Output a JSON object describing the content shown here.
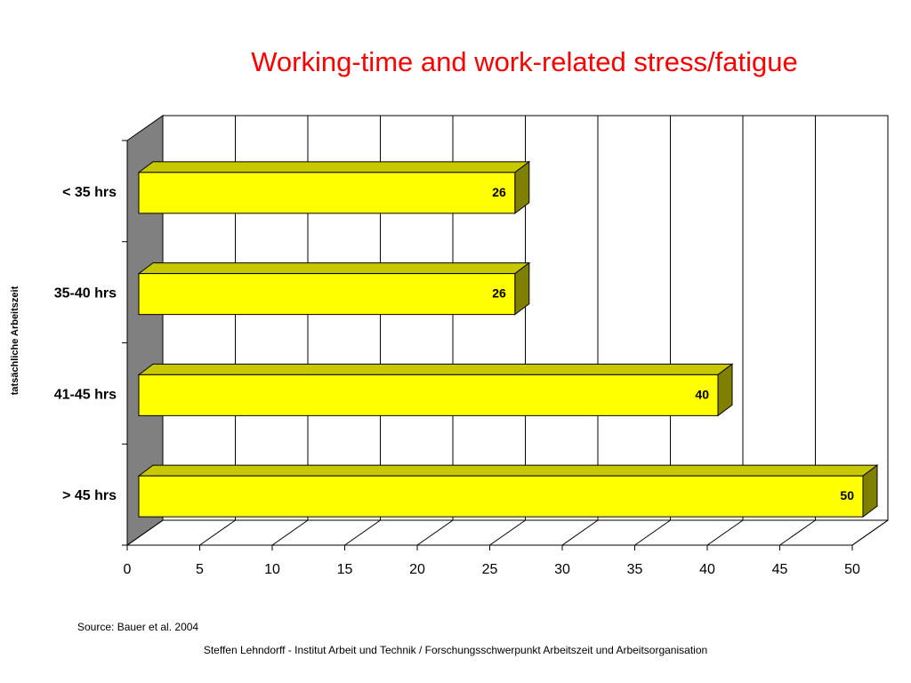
{
  "chart_data": {
    "type": "bar",
    "orientation": "horizontal",
    "title": "Working-time and work-related stress/fatigue",
    "ylabel": "tatsächliche Arbeitszeit",
    "xlabel": "",
    "categories": [
      "< 35 hrs",
      "35-40 hrs",
      "41-45 hrs",
      "> 45 hrs"
    ],
    "values": [
      26,
      26,
      40,
      50
    ],
    "value_labels": [
      "26",
      "26",
      "40",
      "50"
    ],
    "xlim": [
      0,
      50
    ],
    "xticks": [
      "0",
      "5",
      "10",
      "15",
      "20",
      "25",
      "30",
      "35",
      "40",
      "45",
      "50"
    ],
    "grid": true,
    "bar_color": "#ffff00",
    "bar_top_color": "#c8c800",
    "bar_side_color": "#808000",
    "wall_color": "#808080"
  },
  "source": "Source: Bauer et al. 2004",
  "footer": "Steffen Lehndorff - Institut Arbeit und Technik / Forschungsschwerpunkt Arbeitszeit und Arbeitsorganisation"
}
